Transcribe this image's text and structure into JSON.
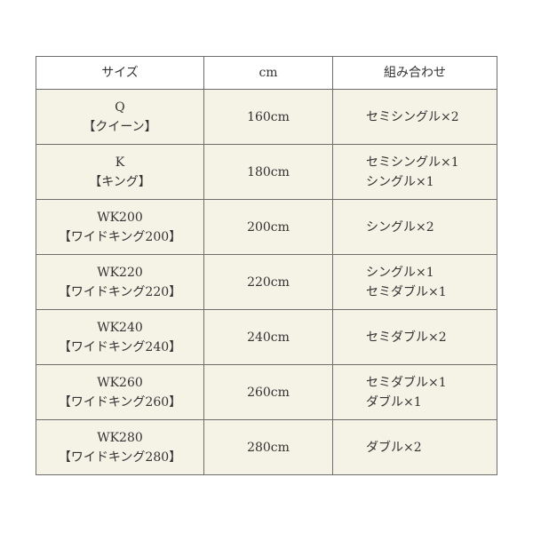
{
  "table": {
    "headers": [
      "サイズ",
      "cm",
      "組み合わせ"
    ],
    "rows": [
      {
        "size": [
          "Q",
          "【クイーン】"
        ],
        "cm": "160cm",
        "combo": [
          "セミシングル×2"
        ]
      },
      {
        "size": [
          "K",
          "【キング】"
        ],
        "cm": "180cm",
        "combo": [
          "セミシングル×1",
          "シングル×1"
        ]
      },
      {
        "size": [
          "WK200",
          "【ワイドキング200】"
        ],
        "cm": "200cm",
        "combo": [
          "シングル×2"
        ]
      },
      {
        "size": [
          "WK220",
          "【ワイドキング220】"
        ],
        "cm": "220cm",
        "combo": [
          "シングル×1",
          "セミダブル×1"
        ]
      },
      {
        "size": [
          "WK240",
          "【ワイドキング240】"
        ],
        "cm": "240cm",
        "combo": [
          "セミダブル×2"
        ]
      },
      {
        "size": [
          "WK260",
          "【ワイドキング260】"
        ],
        "cm": "260cm",
        "combo": [
          "セミダブル×1",
          "ダブル×1"
        ]
      },
      {
        "size": [
          "WK280",
          "【ワイドキング280】"
        ],
        "cm": "280cm",
        "combo": [
          "ダブル×2"
        ]
      }
    ],
    "colors": {
      "row_bg": "#f5f2e6",
      "header_bg": "#ffffff",
      "border": "#6e6e6e"
    }
  }
}
